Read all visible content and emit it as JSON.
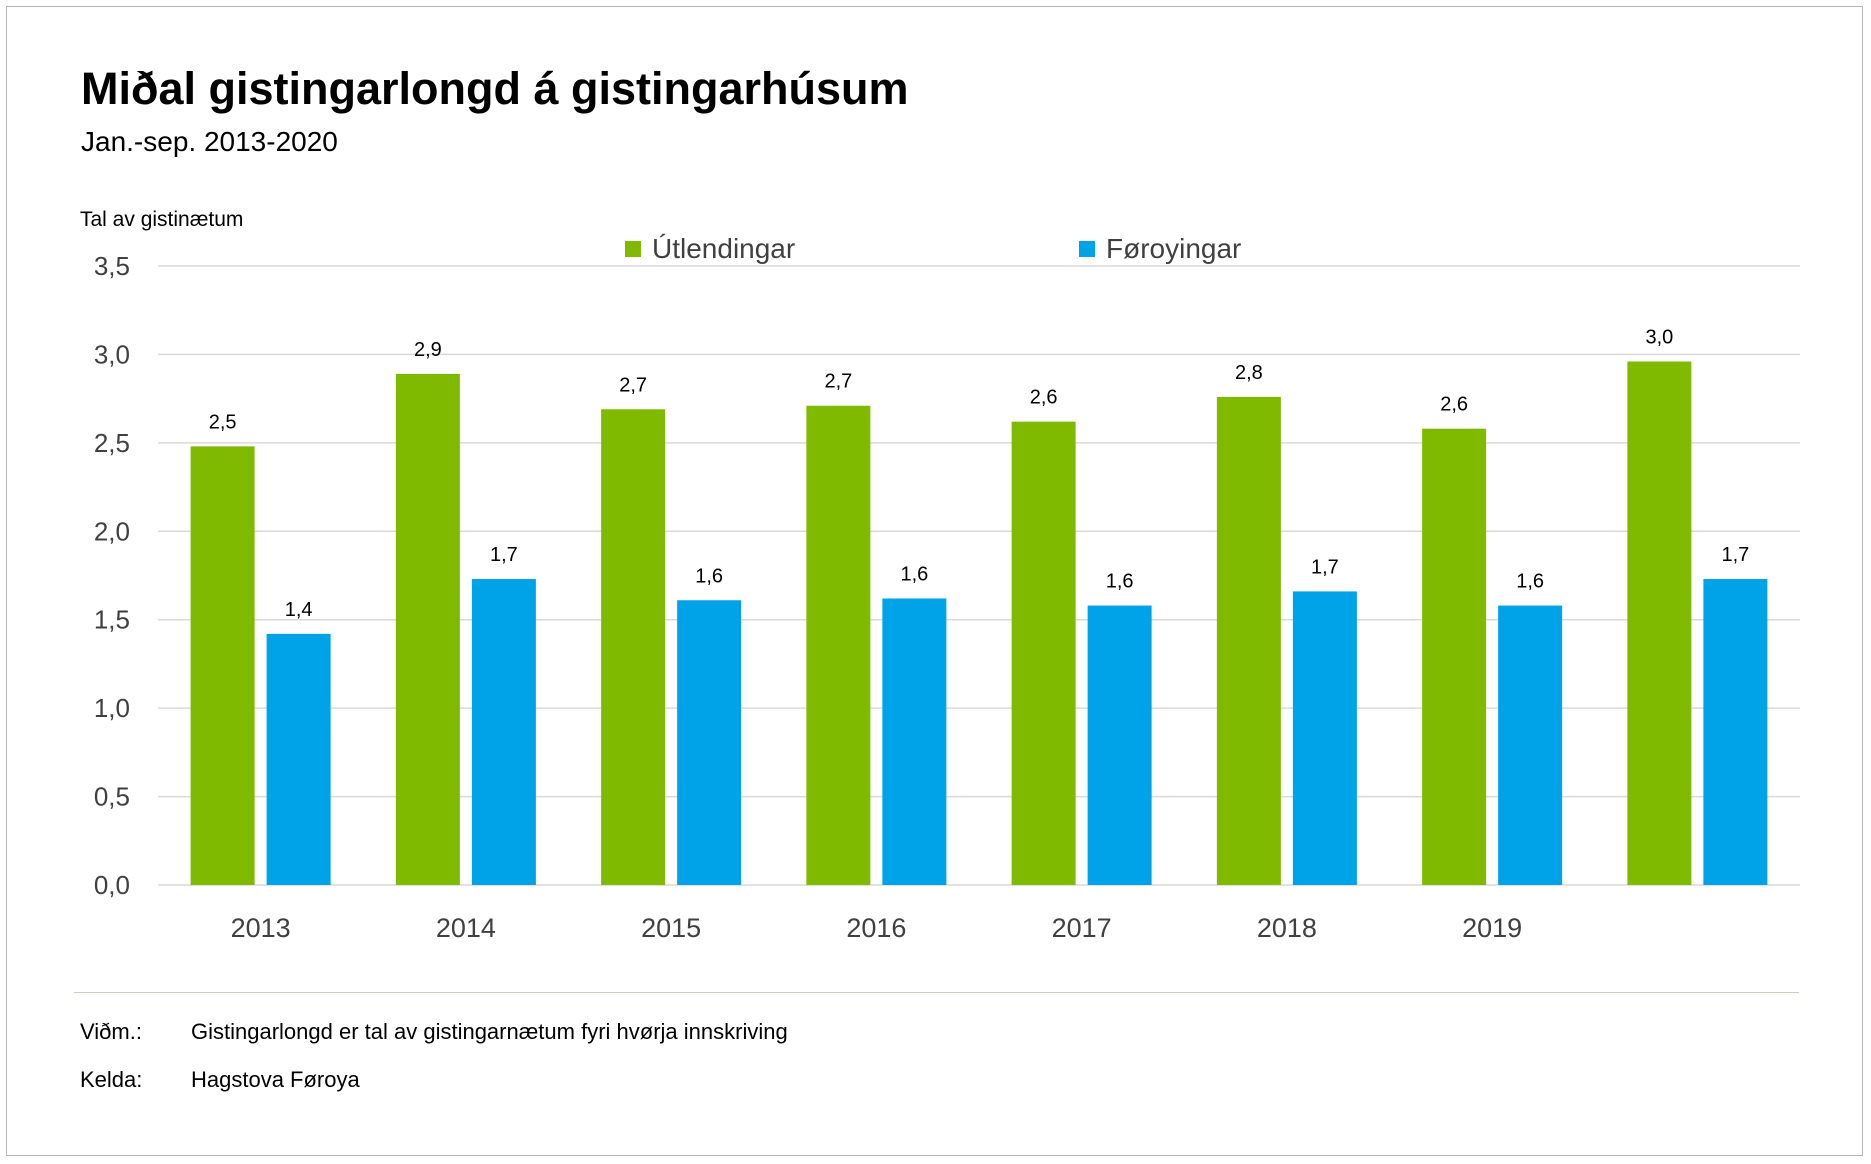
{
  "title": "Miðal gistingarlongd á gistingarhúsum",
  "subtitle": "Jan.-sep. 2013-2020",
  "notes": {
    "note_label": "Viðm.:",
    "note_text": "Gistingarlongd er tal av gistingarnætum fyri hvørja innskriving",
    "source_label": "Kelda:",
    "source_text": "Hagstova Føroya"
  },
  "colors": {
    "utlendingar": "#7fba00",
    "foroyingar": "#00a2e8",
    "gridline": "#d9d9d9"
  },
  "chart_data": {
    "type": "bar",
    "title": "Miðal gistingarlongd á gistingarhúsum",
    "subtitle": "Jan.-sep. 2013-2020",
    "ylabel": "Tal av gistinætum",
    "xlabel": "",
    "ylim": [
      0,
      3.5
    ],
    "yticks": [
      "0,0",
      "0,5",
      "1,0",
      "1,5",
      "2,0",
      "2,5",
      "3,0",
      "3,5"
    ],
    "categories": [
      "2013",
      "2014",
      "2015",
      "2016",
      "2017",
      "2018",
      "2019",
      ""
    ],
    "legend_position": "top",
    "grid": true,
    "series": [
      {
        "name": "Útlendingar",
        "color": "#7fba00",
        "values": [
          2.48,
          2.89,
          2.69,
          2.71,
          2.62,
          2.76,
          2.58,
          2.96
        ],
        "labels": [
          "2,5",
          "2,9",
          "2,7",
          "2,7",
          "2,6",
          "2,8",
          "2,6",
          "3,0"
        ]
      },
      {
        "name": "Føroyingar",
        "color": "#00a2e8",
        "values": [
          1.42,
          1.73,
          1.61,
          1.62,
          1.58,
          1.66,
          1.58,
          1.73
        ],
        "labels": [
          "1,4",
          "1,7",
          "1,6",
          "1,6",
          "1,6",
          "1,7",
          "1,6",
          "1,7"
        ]
      }
    ]
  }
}
